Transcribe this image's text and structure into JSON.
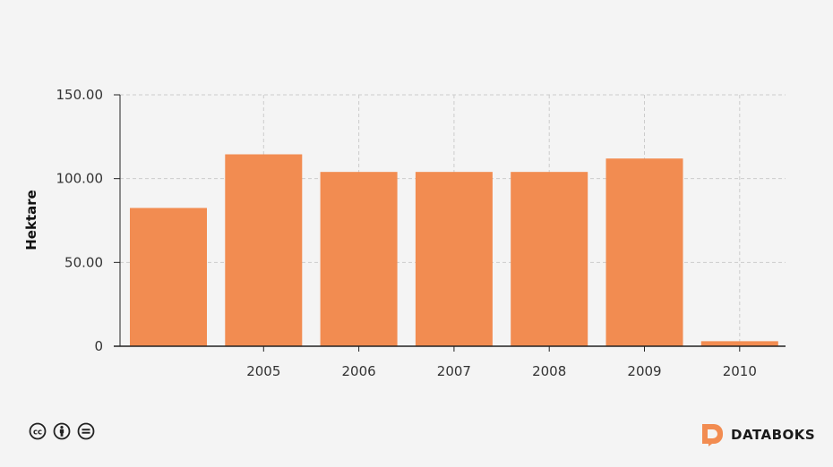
{
  "chart_data": {
    "type": "bar",
    "categories": [
      "",
      "2005",
      "2006",
      "2007",
      "2008",
      "2009",
      "2010"
    ],
    "values": [
      82.5,
      114.5,
      104.0,
      104.0,
      104.0,
      112.0,
      3.0
    ],
    "title": "",
    "xlabel": "",
    "ylabel": "Hektare",
    "ylim": [
      0,
      150
    ],
    "yticks": [
      0,
      50,
      100,
      150
    ],
    "ytick_labels": [
      "0",
      "50.00",
      "100.00",
      "150.00"
    ],
    "grid": true,
    "bar_color": "#f28c51",
    "grid_color": "#cccccc"
  },
  "footer": {
    "license_icons": [
      "creative-commons-icon",
      "attribution-icon",
      "no-derivatives-icon"
    ],
    "brand_name": "DATABOKS",
    "brand_color": "#f28c51"
  }
}
